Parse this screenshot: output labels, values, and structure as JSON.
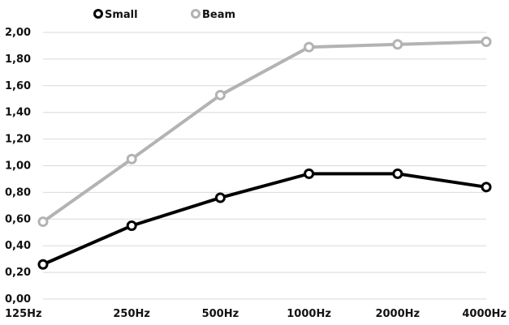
{
  "chart_data": {
    "type": "line",
    "title": "",
    "xlabel": "",
    "ylabel": "",
    "categories": [
      "125Hz",
      "250Hz",
      "500Hz",
      "1000Hz",
      "2000Hz",
      "4000Hz"
    ],
    "ylim": [
      0,
      2
    ],
    "yticks": [
      "0,00",
      "0,20",
      "0,40",
      "0,60",
      "0,80",
      "1,00",
      "1,20",
      "1,40",
      "1,60",
      "1,80",
      "2,00"
    ],
    "grid": true,
    "legend": "top-left",
    "series": [
      {
        "name": "Small",
        "color": "#000000",
        "values": [
          0.26,
          0.55,
          0.76,
          0.94,
          0.94,
          0.84
        ]
      },
      {
        "name": "Beam",
        "color": "#b3b3b3",
        "values": [
          0.58,
          1.05,
          1.53,
          1.89,
          1.91,
          1.93
        ]
      }
    ]
  }
}
